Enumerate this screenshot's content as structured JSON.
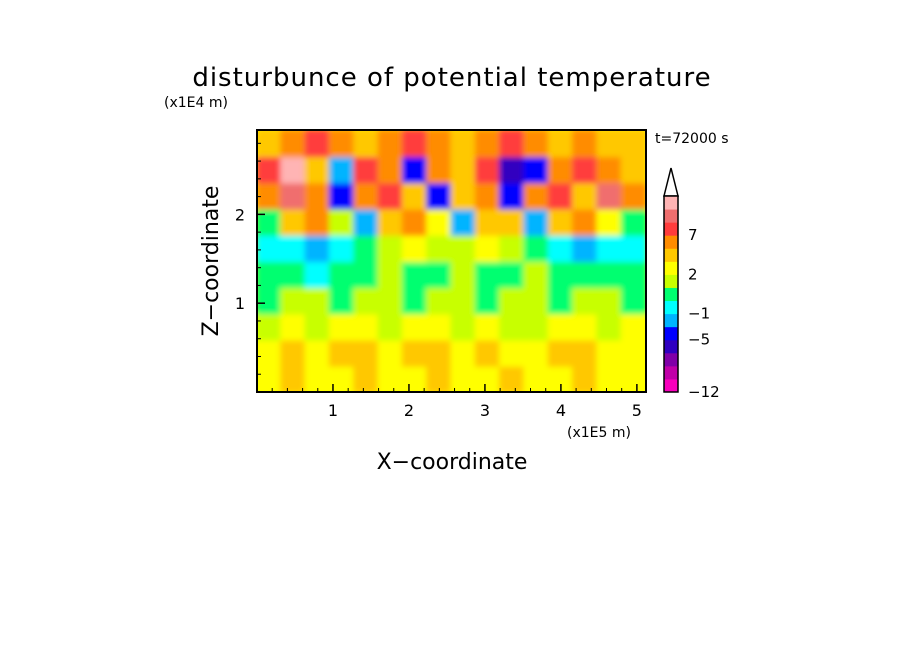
{
  "chart_data": {
    "type": "heatmap",
    "title": "disturbunce of potential temperature",
    "xlabel": "X−coordinate",
    "ylabel": "Z−coordinate",
    "x_scale_label": "(x1E5 m)",
    "y_scale_label": "(x1E4 m)",
    "time_label": "t=72000 s",
    "xlim": [
      0,
      5.12
    ],
    "ylim": [
      0,
      2.95
    ],
    "x_ticks": [
      1,
      2,
      3,
      4,
      5
    ],
    "y_ticks": [
      1,
      2
    ],
    "x_tick_labels": [
      "1",
      "2",
      "3",
      "4",
      "5"
    ],
    "y_tick_labels": [
      "1",
      "2"
    ],
    "colorbar": {
      "levels": [
        -12,
        -11,
        -9,
        -7,
        -5,
        -3,
        -1,
        0,
        1,
        2,
        3,
        5,
        7,
        9,
        11
      ],
      "labeled_levels": [
        "7",
        "2",
        "−1",
        "−5",
        "−12"
      ],
      "colors": [
        "#f800bc",
        "#c000a8",
        "#8000a8",
        "#3000c0",
        "#0000ff",
        "#00b4ff",
        "#00ffff",
        "#00ff70",
        "#c8ff00",
        "#ffff00",
        "#ffc800",
        "#ff8c00",
        "#ff3c3c",
        "#f06e6e",
        "#ffb4b4"
      ]
    },
    "series": [
      {
        "name": "",
        "z_description_rows": "rows run from bottom (z=0) to top (z=2.95); values are theta' in K",
        "rows": [
          [
            2,
            3,
            2,
            2,
            3,
            2,
            2,
            3,
            2,
            2,
            3,
            2,
            2,
            3,
            2,
            2
          ],
          [
            2,
            3,
            2,
            3,
            3,
            2,
            3,
            3,
            2,
            3,
            2,
            2,
            3,
            3,
            2,
            2
          ],
          [
            1,
            2,
            1,
            2,
            2,
            1,
            2,
            2,
            1,
            2,
            1,
            1,
            2,
            2,
            1,
            2
          ],
          [
            0,
            1,
            1,
            0,
            1,
            1,
            0,
            1,
            1,
            0,
            1,
            1,
            0,
            1,
            1,
            0
          ],
          [
            0,
            0,
            -1,
            0,
            0,
            1,
            0,
            0,
            1,
            0,
            0,
            1,
            0,
            0,
            0,
            0
          ],
          [
            -1,
            -1,
            -3,
            -1,
            0,
            1,
            2,
            1,
            1,
            2,
            1,
            0,
            -1,
            -2,
            -1,
            -1
          ],
          [
            0,
            3,
            5,
            1,
            -3,
            3,
            5,
            2,
            -3,
            4,
            3,
            -3,
            3,
            5,
            2,
            0
          ],
          [
            5,
            9,
            5,
            -5,
            5,
            7,
            3,
            -5,
            3,
            5,
            -5,
            5,
            7,
            3,
            9,
            5
          ],
          [
            7,
            11,
            3,
            -3,
            7,
            5,
            -5,
            5,
            3,
            7,
            -7,
            -5,
            5,
            7,
            5,
            3
          ],
          [
            3,
            5,
            7,
            5,
            3,
            5,
            7,
            5,
            3,
            5,
            7,
            5,
            3,
            5,
            3,
            3
          ]
        ]
      }
    ]
  }
}
